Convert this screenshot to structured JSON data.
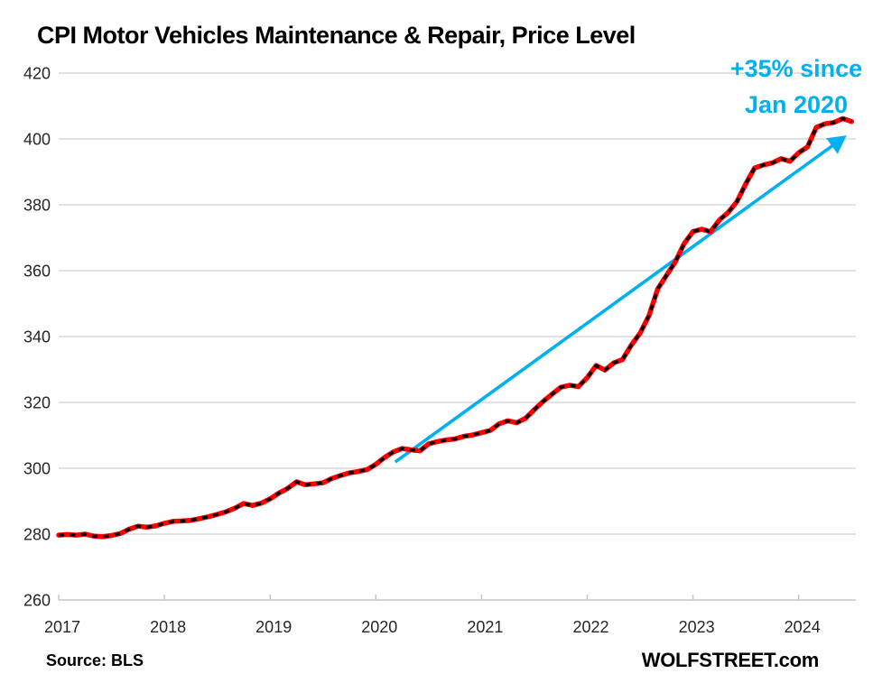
{
  "title": "CPI Motor Vehicles Maintenance & Repair, Price Level",
  "annotation": {
    "line1": "+35% since",
    "line2": "Jan 2020"
  },
  "source_label": "Source: BLS",
  "watermark": "WOLFSTREET.com",
  "colors": {
    "line": "#FF0000",
    "dashes": "#000000",
    "arrow": "#00B0F0",
    "annotation_text": "#00B0F0",
    "grid": "#D9D9D9",
    "axis": "#C6C6C6",
    "tick_text": "#262626",
    "title_text": "#000000"
  },
  "chart_data": {
    "type": "line",
    "title": "CPI Motor Vehicles Maintenance & Repair, Price Level",
    "xlabel": "",
    "ylabel": "",
    "ylim": [
      260,
      420
    ],
    "y_ticks": [
      260,
      280,
      300,
      320,
      340,
      360,
      380,
      400,
      420
    ],
    "x_tick_labels": [
      "2017",
      "2018",
      "2019",
      "2020",
      "2021",
      "2022",
      "2023",
      "2024"
    ],
    "grid": true,
    "legend": false,
    "series": [
      {
        "name": "CPI Motor Vehicles Maintenance & Repair, price level index",
        "start": "2017-01",
        "end": "2024-07",
        "frequency": "monthly",
        "style": "thick red line with black dash overlay",
        "values": [
          279.7,
          279.9,
          279.7,
          280.0,
          279.4,
          279.2,
          279.6,
          280.2,
          281.5,
          282.4,
          282.1,
          282.5,
          283.3,
          283.9,
          284.0,
          284.2,
          284.7,
          285.3,
          286.0,
          286.8,
          287.9,
          289.3,
          288.7,
          289.4,
          290.7,
          292.5,
          293.9,
          295.9,
          295.0,
          295.3,
          295.6,
          296.9,
          297.8,
          298.6,
          299.0,
          299.6,
          301.2,
          303.3,
          305.0,
          306.0,
          305.6,
          305.3,
          307.4,
          308.1,
          308.6,
          308.9,
          309.7,
          310.1,
          310.8,
          311.5,
          313.5,
          314.4,
          313.8,
          315.2,
          317.8,
          320.3,
          322.5,
          324.6,
          325.2,
          324.8,
          327.5,
          331.2,
          329.8,
          332.0,
          333.0,
          337.4,
          341.0,
          346.3,
          354.5,
          358.6,
          362.7,
          368.2,
          371.9,
          372.6,
          371.8,
          375.4,
          377.7,
          381.0,
          386.4,
          391.2,
          392.1,
          392.7,
          394.0,
          393.2,
          395.8,
          397.6,
          403.5,
          404.6,
          405.0,
          406.2,
          405.3
        ]
      }
    ],
    "trend_arrow": {
      "label": "+35% since Jan 2020",
      "from_month_index": 38.2,
      "from_value": 301.9,
      "to_month_index": 89.2,
      "to_value": 400.6
    }
  }
}
